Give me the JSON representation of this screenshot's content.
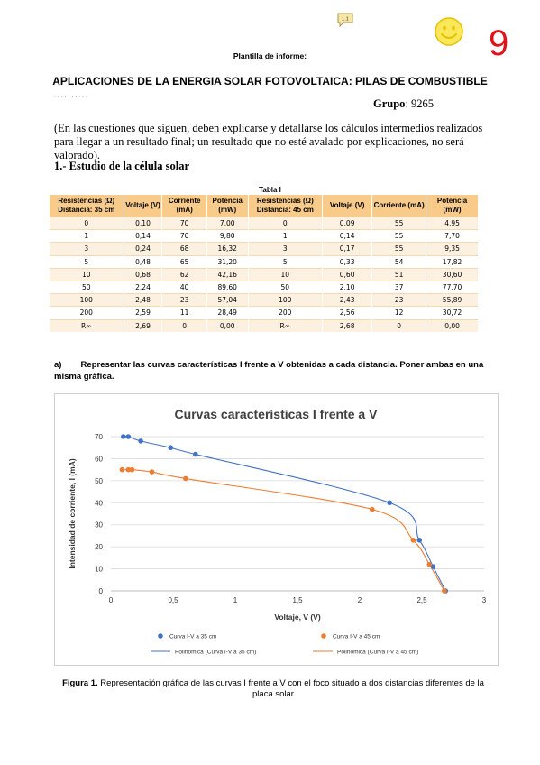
{
  "header": {
    "comment_badge": "1.1",
    "grade": "9"
  },
  "plantilla": "Plantilla de informe:",
  "title": "APLICACIONES DE LA ENERGIA SOLAR FOTOVOLTAICA: PILAS DE COMBUSTIBLE",
  "dots": ". . . . . . . . . .",
  "grupo": {
    "label": "Grupo",
    "value": ": 9265"
  },
  "intro": "(En las cuestiones que siguen, deben explicarse y detallarse los cálculos intermedios realizados para llegar a un resultado final; un resultado que no esté avalado por explicaciones, no será valorado).",
  "section1": "1.- Estudio de la célula solar",
  "table": {
    "title": "Tabla I",
    "headers": [
      "Resistencias (Ω) Distancia: 35 cm",
      "Voltaje (V)",
      "Corriente (mA)",
      "Potencia (mW)",
      "Resistencias (Ω) Distancia: 45 cm",
      "Voltaje (V)",
      "Corriente (mA)",
      "Potencia (mW)"
    ],
    "rows": [
      [
        "0",
        "0,10",
        "70",
        "7,00",
        "0",
        "0,09",
        "55",
        "4,95"
      ],
      [
        "1",
        "0,14",
        "70",
        "9,80",
        "1",
        "0,14",
        "55",
        "7,70"
      ],
      [
        "3",
        "0,24",
        "68",
        "16,32",
        "3",
        "0,17",
        "55",
        "9,35"
      ],
      [
        "5",
        "0,48",
        "65",
        "31,20",
        "5",
        "0,33",
        "54",
        "17,82"
      ],
      [
        "10",
        "0,68",
        "62",
        "42,16",
        "10",
        "0,60",
        "51",
        "30,60"
      ],
      [
        "50",
        "2,24",
        "40",
        "89,60",
        "50",
        "2,10",
        "37",
        "77,70"
      ],
      [
        "100",
        "2,48",
        "23",
        "57,04",
        "100",
        "2,43",
        "23",
        "55,89"
      ],
      [
        "200",
        "2,59",
        "11",
        "28,49",
        "200",
        "2,56",
        "12",
        "30,72"
      ],
      [
        "R∞",
        "2,69",
        "0",
        "0,00",
        "R∞",
        "2,68",
        "0",
        "0,00"
      ]
    ]
  },
  "question_a": "a)        Representar las curvas características I frente a V obtenidas a cada distancia. Poner ambas en una misma gráfica.",
  "chart_data": {
    "type": "scatter",
    "title": "Curvas características I frente a V",
    "xlabel": "Voltaje, V (V)",
    "ylabel": "Intensidad de corriente, I (mA)",
    "xlim": [
      0,
      3
    ],
    "ylim": [
      0,
      70
    ],
    "xticks": [
      "0",
      "0,5",
      "1",
      "1,5",
      "2",
      "2,5",
      "3"
    ],
    "yticks": [
      "0",
      "10",
      "20",
      "30",
      "40",
      "50",
      "60",
      "70"
    ],
    "grid": "horizontal",
    "legend": "bottom",
    "series": [
      {
        "name": "Curva I-V a 35 cm",
        "color": "#4472c4",
        "x": [
          0.1,
          0.14,
          0.24,
          0.48,
          0.68,
          2.24,
          2.48,
          2.59,
          2.69
        ],
        "y": [
          70,
          70,
          68,
          65,
          62,
          40,
          23,
          11,
          0
        ]
      },
      {
        "name": "Curva I-V a 45 cm",
        "color": "#ed7d31",
        "x": [
          0.09,
          0.14,
          0.17,
          0.33,
          0.6,
          2.1,
          2.43,
          2.56,
          2.68
        ],
        "y": [
          55,
          55,
          55,
          54,
          51,
          37,
          23,
          12,
          0
        ]
      }
    ],
    "trendlines": [
      {
        "name": "Polinómica (Curva I-V a 35 cm)",
        "color": "#4472c4"
      },
      {
        "name": "Polinómica (Curva I-V a 45 cm)",
        "color": "#ed7d31"
      }
    ]
  },
  "caption": {
    "label": "Figura 1.",
    "text": " Representación gráfica de las curvas I frente a V con el foco situado a dos distancias diferentes de la placa solar"
  }
}
